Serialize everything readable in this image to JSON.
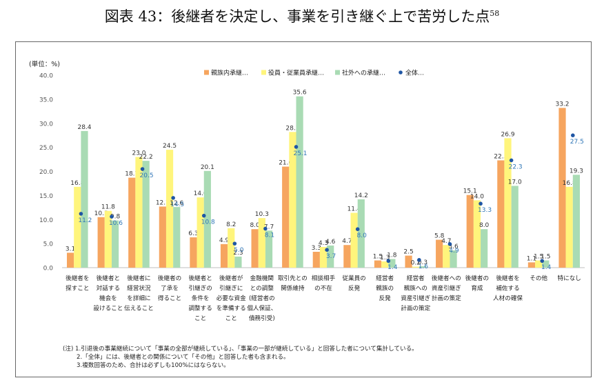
{
  "title": "図表 43：後継者を決定し、事業を引き継ぐ上で苦労した点",
  "title_sup": "58",
  "chart_data": {
    "type": "bar",
    "unit_label": "(単位：%)",
    "ylim": [
      0,
      40
    ],
    "y_ticks": [
      "0.0",
      "5.0",
      "10.0",
      "15.0",
      "20.0",
      "25.0",
      "30.0",
      "35.0",
      "40.0"
    ],
    "categories": [
      [
        "後継者を",
        "探すこと"
      ],
      [
        "後継者と",
        "対話する",
        "機会を",
        "設けること"
      ],
      [
        "後継者に",
        "経営状況",
        "を詳細に",
        "伝えること"
      ],
      [
        "後継者の",
        "了承を",
        "得ること"
      ],
      [
        "後継者と",
        "引継ぎの",
        "条件を",
        "調整する",
        "こと"
      ],
      [
        "後継者が",
        "引継ぎに",
        "必要な資金",
        "を準備する",
        "こと"
      ],
      [
        "金融機関",
        "との調整",
        "(経営者の",
        "個人保証、",
        "債務引受)"
      ],
      [
        "取引先との",
        "関係維持"
      ],
      [
        "相談相手",
        "の不在"
      ],
      [
        "従業員の",
        "反発"
      ],
      [
        "経営者",
        "親族の",
        "反発"
      ],
      [
        "経営者",
        "親族への",
        "資産引継ぎ",
        "計画の策定"
      ],
      [
        "後継者への",
        "資産引継ぎ",
        "計画の策定"
      ],
      [
        "後継者の",
        "育成"
      ],
      [
        "後継者を",
        "補佐する",
        "人材の確保"
      ],
      [
        "その他"
      ],
      [
        "特になし"
      ]
    ],
    "series": [
      {
        "name": "親族内承継…",
        "color": "#f6a55f",
        "values": [
          3.1,
          10.5,
          18.7,
          12.7,
          6.3,
          4.9,
          8.0,
          21.0,
          3.3,
          4.7,
          1.5,
          2.5,
          5.8,
          15.1,
          22.3,
          1.1,
          33.2
        ]
      },
      {
        "name": "役員・従業員承継…",
        "color": "#fff57c",
        "values": [
          16.8,
          11.8,
          23.0,
          24.5,
          14.6,
          8.2,
          10.3,
          28.2,
          4.3,
          11.4,
          1.3,
          0.2,
          4.7,
          14.0,
          26.9,
          1.5,
          16.8
        ]
      },
      {
        "name": "社外への承継…",
        "color": "#a9dbb4",
        "values": [
          28.4,
          9.8,
          22.2,
          12.6,
          20.1,
          2.3,
          7.7,
          35.6,
          4.6,
          14.2,
          1.8,
          0.3,
          3.6,
          8.0,
          17.0,
          1.5,
          19.3
        ]
      }
    ],
    "overall": {
      "name": "全体…",
      "color": "#1f56a4",
      "label_color": "#2e75b6",
      "values": [
        11.2,
        10.6,
        20.5,
        14.5,
        10.8,
        5.0,
        8.1,
        25.1,
        3.7,
        8.0,
        1.4,
        1.6,
        4.9,
        13.3,
        22.3,
        1.4,
        27.5
      ]
    }
  },
  "notes": [
    "(注) 1.引退後の事業継続について「事業の全部が継続している」、「事業の一部が継続している」と回答した者について集計している。",
    "2.「全体」には、後継者との関係について「その他」と回答した者も含まれる。",
    "3.複数回答のため、合計は必ずしも100%にはならない。"
  ]
}
